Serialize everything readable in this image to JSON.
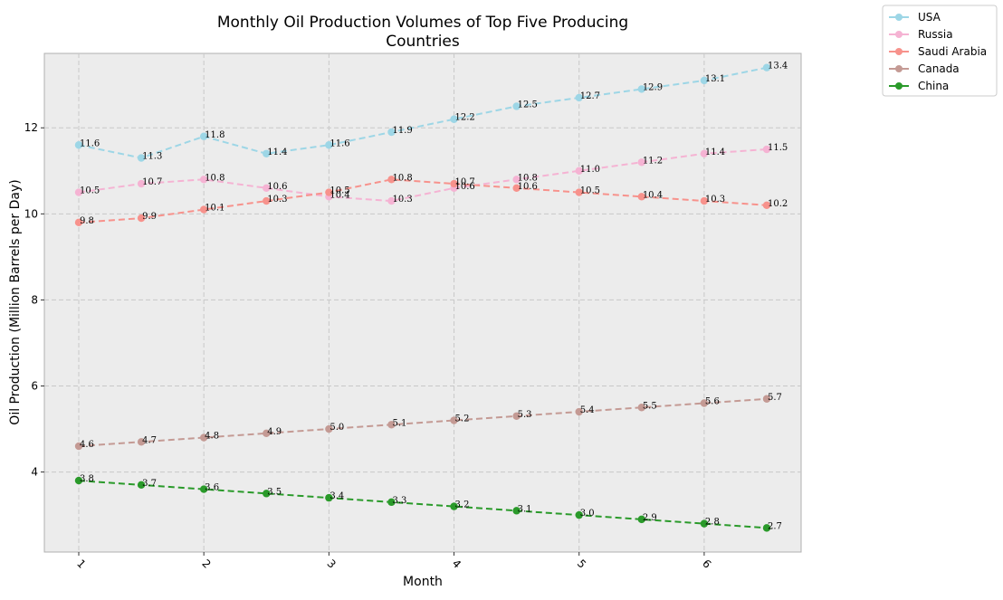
{
  "chart_data": {
    "type": "line",
    "title": "Monthly Oil Production Volumes of Top Five Producing Countries",
    "title_lines": [
      "Monthly Oil Production Volumes of Top Five Producing",
      "Countries"
    ],
    "xlabel": "Month",
    "ylabel": "Oil Production (Million Barrels per Day)",
    "x": [
      1,
      1.5,
      2,
      2.5,
      3,
      3.5,
      4,
      4.5,
      5,
      5.5,
      6,
      6.5
    ],
    "xlim": [
      0.725,
      6.775
    ],
    "ylim": [
      2.14,
      13.73
    ],
    "xticks": [
      1,
      2,
      3,
      4,
      5,
      6
    ],
    "xtick_labels": [
      "1",
      "2",
      "3",
      "4",
      "5",
      "6"
    ],
    "yticks": [
      4,
      6,
      8,
      10,
      12
    ],
    "ytick_labels": [
      "4",
      "6",
      "8",
      "10",
      "12"
    ],
    "grid": true,
    "legend_position": "outside-top-right",
    "series": [
      {
        "name": "USA",
        "color": "#9dd6e6",
        "values": [
          11.6,
          11.3,
          11.8,
          11.4,
          11.6,
          11.9,
          12.2,
          12.5,
          12.7,
          12.9,
          13.1,
          13.4
        ],
        "labels": [
          "11.6",
          "11.3",
          "11.8",
          "11.4",
          "11.6",
          "11.9",
          "12.2",
          "12.5",
          "12.7",
          "12.9",
          "13.1",
          "13.4"
        ]
      },
      {
        "name": "Russia",
        "color": "#f5b3d3",
        "values": [
          10.5,
          10.7,
          10.8,
          10.6,
          10.4,
          10.3,
          10.6,
          10.8,
          11.0,
          11.2,
          11.4,
          11.5
        ],
        "labels": [
          "10.5",
          "10.7",
          "10.8",
          "10.6",
          "10.4",
          "10.3",
          "10.6",
          "10.8",
          "11.0",
          "11.2",
          "11.4",
          "11.5"
        ]
      },
      {
        "name": "Saudi Arabia",
        "color": "#f7928c",
        "values": [
          9.8,
          9.9,
          10.1,
          10.3,
          10.5,
          10.8,
          10.7,
          10.6,
          10.5,
          10.4,
          10.3,
          10.2
        ],
        "labels": [
          "9.8",
          "9.9",
          "10.1",
          "10.3",
          "10.5",
          "10.8",
          "10.7",
          "10.6",
          "10.5",
          "10.4",
          "10.3",
          "10.2"
        ]
      },
      {
        "name": "Canada",
        "color": "#c49a94",
        "values": [
          4.6,
          4.7,
          4.8,
          4.9,
          5.0,
          5.1,
          5.2,
          5.3,
          5.4,
          5.5,
          5.6,
          5.7
        ],
        "labels": [
          "4.6",
          "4.7",
          "4.8",
          "4.9",
          "5.0",
          "5.1",
          "5.2",
          "5.3",
          "5.4",
          "5.5",
          "5.6",
          "5.7"
        ]
      },
      {
        "name": "China",
        "color": "#2a9a2a",
        "values": [
          3.8,
          3.7,
          3.6,
          3.5,
          3.4,
          3.3,
          3.2,
          3.1,
          3.0,
          2.9,
          2.8,
          2.7
        ],
        "labels": [
          "3.8",
          "3.7",
          "3.6",
          "3.5",
          "3.4",
          "3.3",
          "3.2",
          "3.1",
          "3.0",
          "2.9",
          "2.8",
          "2.7"
        ]
      }
    ]
  }
}
